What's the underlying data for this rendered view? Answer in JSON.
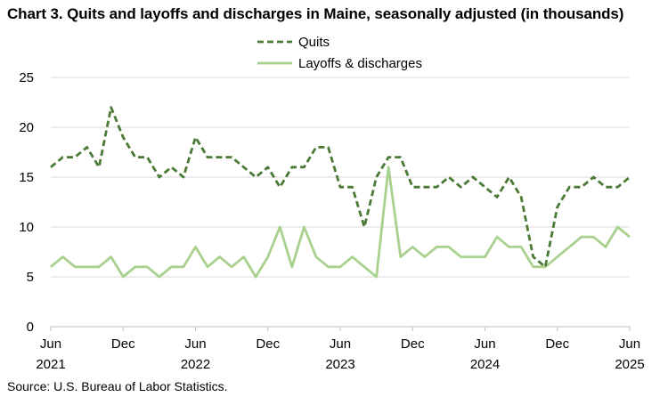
{
  "page": {
    "title": "Chart 3. Quits and layoffs and discharges in Maine, seasonally adjusted (in thousands)",
    "source": "Source: U.S. Bureau of Labor Statistics."
  },
  "colors": {
    "quits": "#4a7a35",
    "layoffs": "#a9d18e",
    "gridline": "#d9d9d9",
    "axis": "#bfbfbf"
  },
  "chart_data": {
    "type": "line",
    "title": "Chart 3. Quits and layoffs and discharges in Maine, seasonally adjusted (in thousands)",
    "xlabel": "",
    "ylabel": "",
    "ylim": [
      0,
      25
    ],
    "yticks": [
      "0",
      "5",
      "10",
      "15",
      "20",
      "25"
    ],
    "grid": true,
    "legend_position": "top-center",
    "x_months": [
      "2021-06",
      "2021-07",
      "2021-08",
      "2021-09",
      "2021-10",
      "2021-11",
      "2021-12",
      "2022-01",
      "2022-02",
      "2022-03",
      "2022-04",
      "2022-05",
      "2022-06",
      "2022-07",
      "2022-08",
      "2022-09",
      "2022-10",
      "2022-11",
      "2022-12",
      "2023-01",
      "2023-02",
      "2023-03",
      "2023-04",
      "2023-05",
      "2023-06",
      "2023-07",
      "2023-08",
      "2023-09",
      "2023-10",
      "2023-11",
      "2023-12",
      "2024-01",
      "2024-02",
      "2024-03",
      "2024-04",
      "2024-05",
      "2024-06",
      "2024-07",
      "2024-08",
      "2024-09",
      "2024-10",
      "2024-11",
      "2024-12",
      "2025-01",
      "2025-02",
      "2025-03",
      "2025-04",
      "2025-05",
      "2025-06"
    ],
    "x_tick_labels": [
      {
        "month": "2021-06",
        "line1": "Jun",
        "line2": "2021"
      },
      {
        "month": "2021-12",
        "line1": "Dec",
        "line2": ""
      },
      {
        "month": "2022-06",
        "line1": "Jun",
        "line2": "2022"
      },
      {
        "month": "2022-12",
        "line1": "Dec",
        "line2": ""
      },
      {
        "month": "2023-06",
        "line1": "Jun",
        "line2": "2023"
      },
      {
        "month": "2023-12",
        "line1": "Dec",
        "line2": ""
      },
      {
        "month": "2024-06",
        "line1": "Jun",
        "line2": "2024"
      },
      {
        "month": "2024-12",
        "line1": "Dec",
        "line2": ""
      },
      {
        "month": "2025-06",
        "line1": "Jun",
        "line2": "2025"
      }
    ],
    "series": [
      {
        "name": "Quits",
        "style": "dashed",
        "values": [
          16,
          17,
          17,
          18,
          16,
          22,
          19,
          17,
          17,
          15,
          16,
          15,
          19,
          17,
          17,
          17,
          16,
          15,
          16,
          14,
          16,
          16,
          18,
          18,
          14,
          14,
          10,
          15,
          17,
          17,
          14,
          14,
          14,
          15,
          14,
          15,
          14,
          13,
          15,
          13,
          7,
          6,
          12,
          14,
          14,
          15,
          14,
          14,
          15
        ]
      },
      {
        "name": "Layoffs & discharges",
        "style": "solid",
        "values": [
          6,
          7,
          6,
          6,
          6,
          7,
          5,
          6,
          6,
          5,
          6,
          6,
          8,
          6,
          7,
          6,
          7,
          5,
          7,
          10,
          6,
          10,
          7,
          6,
          6,
          7,
          6,
          5,
          16,
          7,
          8,
          7,
          8,
          8,
          7,
          7,
          7,
          9,
          8,
          8,
          6,
          6,
          7,
          8,
          9,
          9,
          8,
          10,
          9
        ]
      }
    ]
  }
}
